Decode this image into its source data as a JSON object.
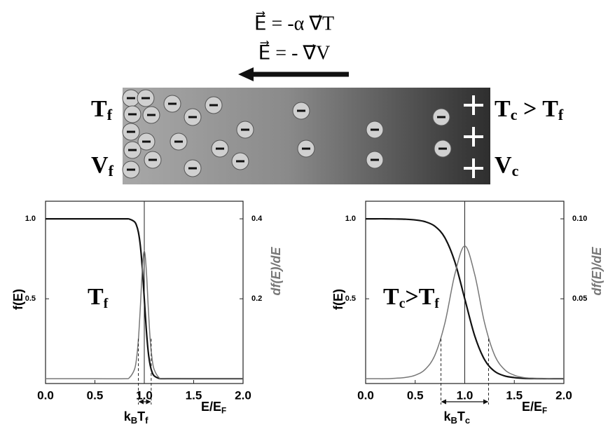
{
  "diagram": {
    "equation1": "E⃗ = -α ∇⃗T",
    "equation2": "E⃗ = - ∇⃗V",
    "left_top": {
      "main": "T",
      "sub": "f"
    },
    "left_bottom": {
      "main": "V",
      "sub": "f"
    },
    "right_top": {
      "main": "T",
      "sub": "c",
      "mid": " > T",
      "sub2": "f"
    },
    "right_bottom": {
      "main": "V",
      "sub": "c"
    }
  },
  "chart_data": [
    {
      "type": "line",
      "x": [
        0,
        0.5,
        0.8,
        0.85,
        0.9,
        0.92,
        0.94,
        0.96,
        0.98,
        1.0,
        1.02,
        1.04,
        1.06,
        1.08,
        1.1,
        1.15,
        1.2,
        1.5,
        2.0
      ],
      "series": [
        {
          "color": "#111111",
          "values": [
            1.0,
            1.0,
            1.0,
            0.998,
            0.982,
            0.961,
            0.917,
            0.832,
            0.69,
            0.5,
            0.31,
            0.168,
            0.083,
            0.039,
            0.018,
            0.002,
            0,
            0,
            0
          ]
        },
        {
          "color": "#777777",
          "axis": "y2",
          "values": [
            0,
            0,
            0,
            0.003,
            0.023,
            0.048,
            0.097,
            0.179,
            0.274,
            0.32,
            0.274,
            0.179,
            0.097,
            0.048,
            0.023,
            0.0025,
            0,
            0,
            0
          ]
        }
      ],
      "xlim": [
        0,
        2
      ],
      "ylim": [
        -0.03,
        1.11
      ],
      "y2lim": [
        -0.012,
        0.444
      ],
      "xticks": [
        {
          "value": 0,
          "label": "0.0"
        },
        {
          "value": 0.5,
          "label": "0.5"
        },
        {
          "value": 1,
          "label": "1.0"
        },
        {
          "value": 1.5,
          "label": "1.5"
        },
        {
          "value": 2,
          "label": "2.0"
        }
      ],
      "yticks": [
        {
          "value": 0.5,
          "label": "0.5"
        },
        {
          "value": 1,
          "label": "1.0"
        }
      ],
      "y2ticks": [
        0.2,
        0.4
      ],
      "ylabel": "f(E)",
      "y2label": "df(E)/dE",
      "xlabel": {
        "main": "E/E",
        "sub": "F"
      },
      "vline": 1.0,
      "bracket": [
        0.94,
        1.07
      ],
      "bracket_label": {
        "main": "k",
        "sub": "B",
        "main2": "T",
        "sub2": "f"
      },
      "annotation": {
        "main": "T",
        "sub": "f"
      }
    },
    {
      "type": "line",
      "x": [
        0,
        0.1,
        0.2,
        0.3,
        0.4,
        0.5,
        0.6,
        0.7,
        0.8,
        0.9,
        1.0,
        1.1,
        1.2,
        1.3,
        1.4,
        1.5,
        1.6,
        1.7,
        1.8,
        1.9,
        2.0
      ],
      "series": [
        {
          "color": "#111111",
          "values": [
            1.0,
            1.0,
            1.0,
            0.999,
            0.9975,
            0.993,
            0.982,
            0.953,
            0.881,
            0.731,
            0.5,
            0.269,
            0.119,
            0.047,
            0.018,
            0.007,
            0.002,
            0.001,
            0,
            0,
            0
          ]
        },
        {
          "color": "#777777",
          "axis": "y2",
          "values": [
            0,
            0,
            0,
            0.0003,
            0.0008,
            0.0022,
            0.0058,
            0.0149,
            0.0349,
            0.0653,
            0.083,
            0.0653,
            0.0349,
            0.0149,
            0.0058,
            0.0022,
            0.0007,
            0.0003,
            0,
            0,
            0
          ]
        }
      ],
      "xlim": [
        0,
        2
      ],
      "ylim": [
        -0.03,
        1.11
      ],
      "y2lim": [
        -0.003,
        0.111
      ],
      "xticks": [
        {
          "value": 0,
          "label": "0.0"
        },
        {
          "value": 0.5,
          "label": "0.5"
        },
        {
          "value": 1,
          "label": "1.0"
        },
        {
          "value": 1.5,
          "label": "1.5"
        },
        {
          "value": 2,
          "label": "2.0"
        }
      ],
      "yticks": [
        {
          "value": 0.5,
          "label": "0.5"
        },
        {
          "value": 1,
          "label": "1.0"
        }
      ],
      "y2ticks": [
        0.05,
        {
          "value": 0.1,
          "label": "0.10"
        }
      ],
      "ylabel": "f(E)",
      "y2label": "df(E)/dE",
      "xlabel": {
        "main": "E/E",
        "sub": "F"
      },
      "vline": 1.0,
      "bracket": [
        0.76,
        1.24
      ],
      "bracket_label": {
        "main": "k",
        "sub": "B",
        "main2": "T",
        "sub2": "c"
      },
      "annotation": {
        "main": "T",
        "sub": "c",
        "mid": ">T",
        "sub2": "f"
      }
    }
  ]
}
